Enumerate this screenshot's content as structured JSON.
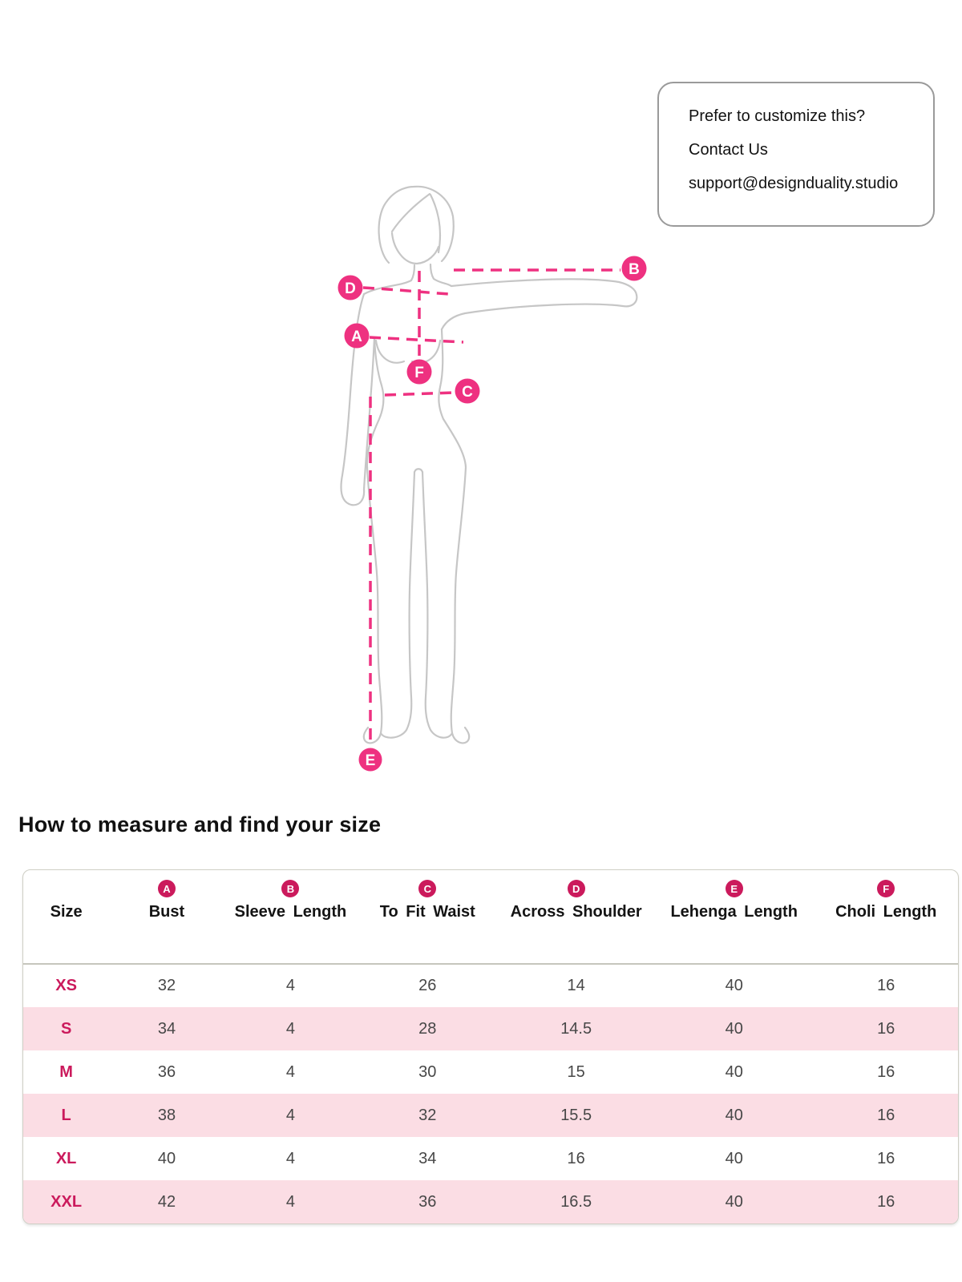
{
  "callout": {
    "line1": "Prefer to customize this?",
    "line2": "Contact Us",
    "line3": "support@designduality.studio"
  },
  "section_title": "How to measure and find your size",
  "figure": {
    "markers": {
      "a": "A",
      "b": "B",
      "c": "C",
      "d": "D",
      "e": "E",
      "f": "F"
    }
  },
  "table": {
    "columns": [
      {
        "badge": "",
        "label": "Size"
      },
      {
        "badge": "A",
        "label": "Bust"
      },
      {
        "badge": "B",
        "label": "Sleeve Length"
      },
      {
        "badge": "C",
        "label": "To Fit Waist"
      },
      {
        "badge": "D",
        "label": "Across Shoulder"
      },
      {
        "badge": "E",
        "label": "Lehenga Length"
      },
      {
        "badge": "F",
        "label": "Choli Length"
      }
    ],
    "rows": [
      {
        "size": "XS",
        "values": [
          "32",
          "4",
          "26",
          "14",
          "40",
          "16"
        ]
      },
      {
        "size": "S",
        "values": [
          "34",
          "4",
          "28",
          "14.5",
          "40",
          "16"
        ]
      },
      {
        "size": "M",
        "values": [
          "36",
          "4",
          "30",
          "15",
          "40",
          "16"
        ]
      },
      {
        "size": "L",
        "values": [
          "38",
          "4",
          "32",
          "15.5",
          "40",
          "16"
        ]
      },
      {
        "size": "XL",
        "values": [
          "40",
          "4",
          "34",
          "16",
          "40",
          "16"
        ]
      },
      {
        "size": "XXL",
        "values": [
          "42",
          "4",
          "36",
          "16.5",
          "40",
          "16"
        ]
      }
    ]
  },
  "colors": {
    "marker_pink": "#ee3180",
    "table_accent": "#cb1a5c",
    "stripe_pink": "#fbdde4",
    "outline_gray": "#c6c6c6"
  }
}
